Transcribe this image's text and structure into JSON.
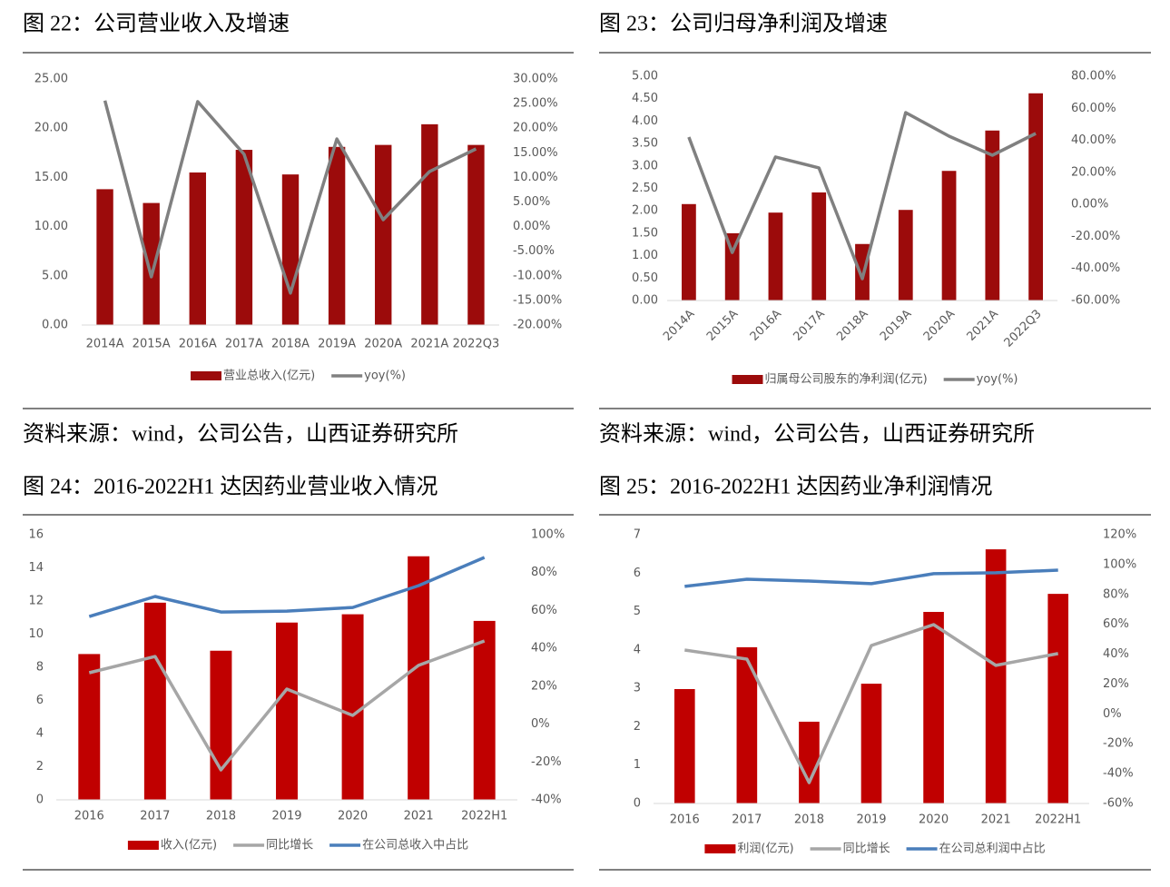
{
  "chart_data": [
    {
      "type": "bar",
      "title": "图 22：公司营业收入及增速",
      "categories": [
        "2014A",
        "2015A",
        "2016A",
        "2017A",
        "2018A",
        "2019A",
        "2020A",
        "2021A",
        "2022Q3"
      ],
      "series": [
        {
          "name": "营业总收入(亿元)",
          "color": "#9c0b0b",
          "values": [
            13.8,
            12.4,
            15.5,
            17.8,
            15.3,
            18.1,
            18.3,
            20.4,
            18.3
          ]
        },
        {
          "name": "yoy(%)",
          "type": "line",
          "axis": "y2",
          "color": "#808080",
          "values": [
            25.6,
            -10.2,
            25.4,
            14.7,
            -13.5,
            17.8,
            1.4,
            11.2,
            15.8
          ]
        }
      ],
      "ylim": [
        0,
        25
      ],
      "yticks": [
        {
          "value": 0,
          "label": "0.00"
        },
        {
          "value": 5,
          "label": "5.00"
        },
        {
          "value": 10,
          "label": "10.00"
        },
        {
          "value": 15,
          "label": "15.00"
        },
        {
          "value": 20,
          "label": "20.00"
        },
        {
          "value": 25,
          "label": "25.00"
        }
      ],
      "y2lim": [
        -20,
        30
      ],
      "y2ticks": [
        {
          "value": -20,
          "label": "-20.00%"
        },
        {
          "value": -15,
          "label": "-15.00%"
        },
        {
          "value": -10,
          "label": "-10.00%"
        },
        {
          "value": -5,
          "label": "-5.00%"
        },
        {
          "value": 0,
          "label": "0.00%"
        },
        {
          "value": 5,
          "label": "5.00%"
        },
        {
          "value": 10,
          "label": "10.00%"
        },
        {
          "value": 15,
          "label": "15.00%"
        },
        {
          "value": 20,
          "label": "20.00%"
        },
        {
          "value": 25,
          "label": "25.00%"
        },
        {
          "value": 30,
          "label": "30.00%"
        }
      ],
      "grid": false,
      "legend": "bottom"
    },
    {
      "type": "bar",
      "title": "图 23：公司归母净利润及增速",
      "categories": [
        "2014A",
        "2015A",
        "2016A",
        "2017A",
        "2018A",
        "2019A",
        "2020A",
        "2021A",
        "2022Q3"
      ],
      "series": [
        {
          "name": "归属母公司股东的净利润(亿元)",
          "color": "#9c0b0b",
          "values": [
            2.15,
            1.5,
            1.96,
            2.41,
            1.26,
            2.02,
            2.89,
            3.79,
            4.62
          ]
        },
        {
          "name": "yoy(%)",
          "type": "line",
          "axis": "y2",
          "color": "#808080",
          "values": [
            42,
            -30,
            29.6,
            22.8,
            -46.4,
            57.3,
            42.6,
            30.7,
            44.3
          ]
        }
      ],
      "ylim": [
        0,
        5
      ],
      "yticks": [
        {
          "value": 0,
          "label": "0.00"
        },
        {
          "value": 0.5,
          "label": "0.50"
        },
        {
          "value": 1,
          "label": "1.00"
        },
        {
          "value": 1.5,
          "label": "1.50"
        },
        {
          "value": 2,
          "label": "2.00"
        },
        {
          "value": 2.5,
          "label": "2.50"
        },
        {
          "value": 3,
          "label": "3.00"
        },
        {
          "value": 3.5,
          "label": "3.50"
        },
        {
          "value": 4,
          "label": "4.00"
        },
        {
          "value": 4.5,
          "label": "4.50"
        },
        {
          "value": 5,
          "label": "5.00"
        }
      ],
      "y2lim": [
        -60,
        80
      ],
      "y2ticks": [
        {
          "value": -60,
          "label": "-60.00%"
        },
        {
          "value": -40,
          "label": "-40.00%"
        },
        {
          "value": -20,
          "label": "-20.00%"
        },
        {
          "value": 0,
          "label": "0.00%"
        },
        {
          "value": 20,
          "label": "20.00%"
        },
        {
          "value": 40,
          "label": "40.00%"
        },
        {
          "value": 60,
          "label": "60.00%"
        },
        {
          "value": 80,
          "label": "80.00%"
        }
      ],
      "xtick_rotation": -45,
      "grid": false,
      "legend": "bottom"
    },
    {
      "type": "bar",
      "title": "图 24：2016-2022H1 达因药业营业收入情况",
      "categories": [
        "2016",
        "2017",
        "2018",
        "2019",
        "2020",
        "2021",
        "2022H1"
      ],
      "series": [
        {
          "name": "收入(亿元)",
          "color": "#c00000",
          "values": [
            8.8,
            11.9,
            9.0,
            10.7,
            11.2,
            14.7,
            10.8
          ]
        },
        {
          "name": "同比增长",
          "type": "line",
          "axis": "y2",
          "color": "#a6a6a6",
          "values": [
            27.1,
            35.7,
            -24.2,
            18.5,
            4.6,
            31,
            43.9
          ]
        },
        {
          "name": "在公司总收入中占比",
          "type": "line",
          "axis": "y2",
          "color": "#4a7ebb",
          "values": [
            56.8,
            67.4,
            59.2,
            59.7,
            61.6,
            73.1,
            88
          ]
        }
      ],
      "ylim": [
        0,
        16
      ],
      "yticks": [
        0,
        2,
        4,
        6,
        8,
        10,
        12,
        14,
        16
      ],
      "y2lim": [
        -40,
        100
      ],
      "y2ticks": [
        {
          "value": -40,
          "label": "-40%"
        },
        {
          "value": -20,
          "label": "-20%"
        },
        {
          "value": 0,
          "label": "0%"
        },
        {
          "value": 20,
          "label": "20%"
        },
        {
          "value": 40,
          "label": "40%"
        },
        {
          "value": 60,
          "label": "60%"
        },
        {
          "value": 80,
          "label": "80%"
        },
        {
          "value": 100,
          "label": "100%"
        }
      ],
      "grid": false,
      "legend": "bottom"
    },
    {
      "type": "bar",
      "title": "图 25：2016-2022H1 达因药业净利润情况",
      "categories": [
        "2016",
        "2017",
        "2018",
        "2019",
        "2020",
        "2021",
        "2022H1"
      ],
      "series": [
        {
          "name": "利润(亿元)",
          "color": "#c00000",
          "values": [
            2.98,
            4.07,
            2.13,
            3.12,
            4.99,
            6.62,
            5.46
          ]
        },
        {
          "name": "同比增长",
          "type": "line",
          "axis": "y2",
          "color": "#a6a6a6",
          "values": [
            42.8,
            36.7,
            -46,
            45.8,
            59.8,
            32.5,
            40.4
          ]
        },
        {
          "name": "在公司总利润中占比",
          "type": "line",
          "axis": "y2",
          "color": "#4a7ebb",
          "values": [
            85.4,
            90.2,
            89,
            87.2,
            93.9,
            94.5,
            96.3
          ]
        }
      ],
      "ylim": [
        0,
        7
      ],
      "yticks": [
        0,
        1,
        2,
        3,
        4,
        5,
        6,
        7
      ],
      "y2lim": [
        -60,
        120
      ],
      "y2ticks": [
        {
          "value": -60,
          "label": "-60%"
        },
        {
          "value": -40,
          "label": "-40%"
        },
        {
          "value": -20,
          "label": "-20%"
        },
        {
          "value": 0,
          "label": "0%"
        },
        {
          "value": 20,
          "label": "20%"
        },
        {
          "value": 40,
          "label": "40%"
        },
        {
          "value": 60,
          "label": "60%"
        },
        {
          "value": 80,
          "label": "80%"
        },
        {
          "value": 100,
          "label": "100%"
        },
        {
          "value": 120,
          "label": "120%"
        }
      ],
      "grid": false,
      "legend": "bottom"
    }
  ],
  "sources": [
    "资料来源：wind，公司公告，山西证券研究所",
    "资料来源：wind，公司公告，山西证券研究所"
  ]
}
